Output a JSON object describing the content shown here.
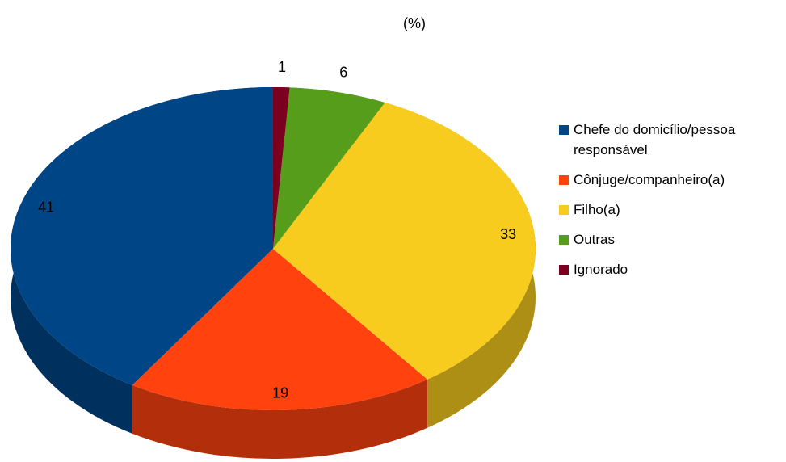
{
  "chart_data": {
    "type": "pie",
    "title": "(%)",
    "categories": [
      "Chefe do domicílio/pessoa responsável",
      "Cônjuge/companheiro(a)",
      "Filho(a)",
      "Outras",
      "Ignorado"
    ],
    "values": [
      41,
      19,
      33,
      6,
      1
    ],
    "colors": [
      "#004586",
      "#ff420e",
      "#f8cc1f",
      "#579d1c",
      "#7e0021"
    ],
    "legend": "right"
  }
}
